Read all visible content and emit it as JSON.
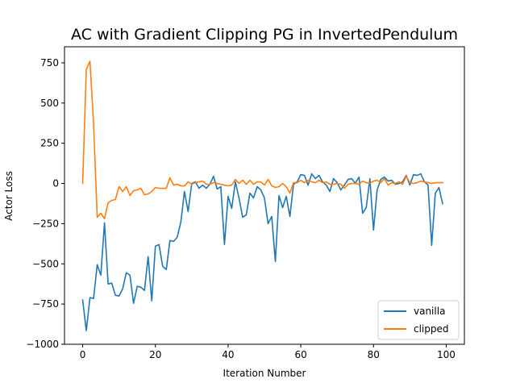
{
  "chart_data": {
    "type": "line",
    "title": "AC with Gradient Clipping PG in InvertedPendulum",
    "xlabel": "Iteration Number",
    "ylabel": "Actor Loss",
    "xlim": [
      -5,
      105
    ],
    "ylim": [
      -1000,
      850
    ],
    "xticks": [
      0,
      20,
      40,
      60,
      80,
      100
    ],
    "yticks": [
      -1000,
      -750,
      -500,
      -250,
      0,
      250,
      500,
      750
    ],
    "grid": false,
    "legend_position": "lower-right",
    "series": [
      {
        "name": "vanilla",
        "color": "#1f77b4",
        "x": [
          0,
          1,
          2,
          3,
          4,
          5,
          6,
          7,
          8,
          9,
          10,
          11,
          12,
          13,
          14,
          15,
          16,
          17,
          18,
          19,
          20,
          21,
          22,
          23,
          24,
          25,
          26,
          27,
          28,
          29,
          30,
          31,
          32,
          33,
          34,
          35,
          36,
          37,
          38,
          39,
          40,
          41,
          42,
          43,
          44,
          45,
          46,
          47,
          48,
          49,
          50,
          51,
          52,
          53,
          54,
          55,
          56,
          57,
          58,
          59,
          60,
          61,
          62,
          63,
          64,
          65,
          66,
          67,
          68,
          69,
          70,
          71,
          72,
          73,
          74,
          75,
          76,
          77,
          78,
          79,
          80,
          81,
          82,
          83,
          84,
          85,
          86,
          87,
          88,
          89,
          90,
          91,
          92,
          93,
          94,
          95,
          96,
          97,
          98,
          99
        ],
        "values": [
          -725,
          -915,
          -710,
          -715,
          -505,
          -570,
          -245,
          -625,
          -620,
          -695,
          -700,
          -655,
          -555,
          -570,
          -745,
          -640,
          -645,
          -665,
          -455,
          -730,
          -390,
          -380,
          -515,
          -535,
          -355,
          -360,
          -335,
          -240,
          -50,
          -175,
          0,
          10,
          -30,
          -10,
          -30,
          -5,
          45,
          -35,
          -20,
          -380,
          -80,
          -155,
          10,
          -90,
          -210,
          -195,
          -60,
          -90,
          -20,
          -40,
          -90,
          -250,
          -205,
          -485,
          -75,
          -150,
          -80,
          -205,
          -5,
          10,
          55,
          50,
          -10,
          60,
          30,
          50,
          10,
          -10,
          -50,
          30,
          5,
          -40,
          -10,
          25,
          30,
          0,
          40,
          -185,
          -150,
          30,
          -290,
          -40,
          25,
          40,
          15,
          20,
          -5,
          0,
          10,
          50,
          -10,
          55,
          50,
          60,
          10,
          -10,
          -385,
          -60,
          -25,
          -125
        ]
      },
      {
        "name": "clipped",
        "color": "#ff7f0e",
        "x": [
          0,
          1,
          2,
          3,
          4,
          5,
          6,
          7,
          8,
          9,
          10,
          11,
          12,
          13,
          14,
          15,
          16,
          17,
          18,
          19,
          20,
          21,
          22,
          23,
          24,
          25,
          26,
          27,
          28,
          29,
          30,
          31,
          32,
          33,
          34,
          35,
          36,
          37,
          38,
          39,
          40,
          41,
          42,
          43,
          44,
          45,
          46,
          47,
          48,
          49,
          50,
          51,
          52,
          53,
          54,
          55,
          56,
          57,
          58,
          59,
          60,
          61,
          62,
          63,
          64,
          65,
          66,
          67,
          68,
          69,
          70,
          71,
          72,
          73,
          74,
          75,
          76,
          77,
          78,
          79,
          80,
          81,
          82,
          83,
          84,
          85,
          86,
          87,
          88,
          89,
          90,
          91,
          92,
          93,
          94,
          95,
          96,
          97,
          98,
          99
        ],
        "values": [
          0,
          710,
          760,
          370,
          -210,
          -185,
          -220,
          -120,
          -105,
          -100,
          -20,
          -50,
          -20,
          -75,
          -45,
          -40,
          -30,
          -70,
          -65,
          -50,
          -25,
          -30,
          -30,
          -30,
          35,
          -10,
          -5,
          -15,
          -15,
          10,
          -5,
          5,
          10,
          15,
          -5,
          -5,
          5,
          0,
          -5,
          -10,
          -15,
          -10,
          25,
          0,
          20,
          -5,
          20,
          -5,
          10,
          10,
          -10,
          25,
          -15,
          -25,
          -20,
          0,
          -20,
          -60,
          5,
          5,
          20,
          5,
          20,
          10,
          5,
          20,
          5,
          10,
          -5,
          -5,
          0,
          -5,
          -30,
          -5,
          0,
          0,
          -5,
          15,
          5,
          0,
          15,
          20,
          5,
          30,
          -10,
          5,
          0,
          10,
          -5,
          45,
          5,
          0,
          5,
          15,
          10,
          5,
          0,
          5,
          5,
          5
        ]
      }
    ]
  }
}
